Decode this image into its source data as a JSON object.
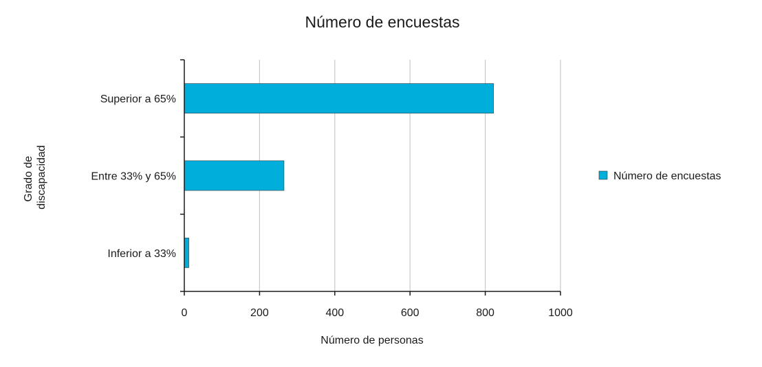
{
  "chart_data": {
    "type": "bar",
    "orientation": "horizontal",
    "title": "Número de encuestas",
    "xlabel": "Número de personas",
    "ylabel_lines": [
      "Grado de",
      "discapacidad"
    ],
    "categories": [
      "Superior a 65%",
      "Entre 33% y 65%",
      "Inferior a 33%"
    ],
    "series": [
      {
        "name": "Número de encuestas",
        "values": [
          822,
          265,
          12
        ]
      }
    ],
    "xlim": [
      0,
      1000
    ],
    "xticks": [
      "0",
      "200",
      "400",
      "600",
      "800",
      "1000"
    ],
    "grid": true,
    "legend_position": "right",
    "bar_color": "#00aedb"
  }
}
